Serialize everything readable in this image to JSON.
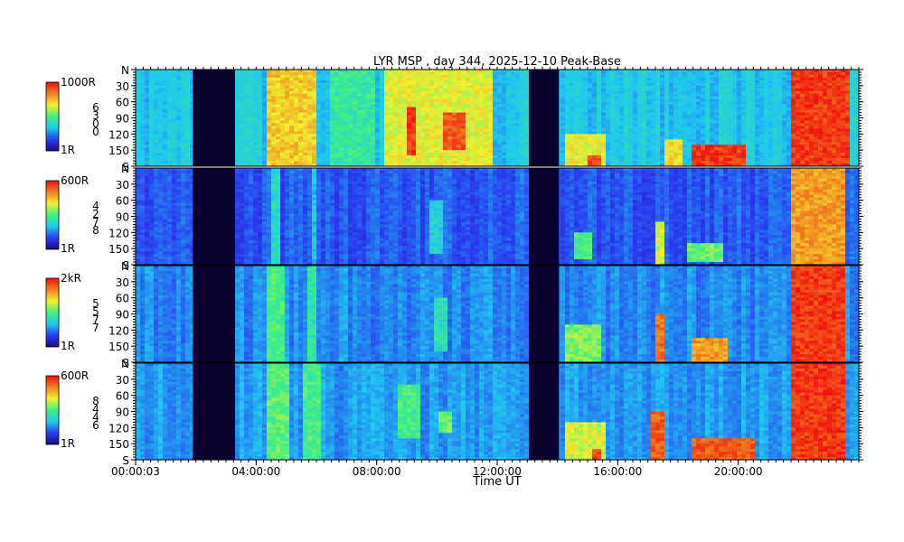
{
  "title": "LYR MSP , day 344, 2025-12-10 Peak-Base",
  "xlabel": "Time UT",
  "chart_data": {
    "type": "heatmap",
    "title": "LYR MSP , day 344, 2025-12-10 Peak-Base",
    "xlabel": "Time UT",
    "x_ticks": [
      "00:00:03",
      "04:00:00",
      "08:00:00",
      "12:00:00",
      "16:00:00",
      "20:00:00"
    ],
    "x_range_hours": [
      0,
      24
    ],
    "y_ticks": [
      "N",
      "30",
      "60",
      "90",
      "120",
      "150",
      "S"
    ],
    "y_range_deg": [
      0,
      180
    ],
    "data_gaps_hours": [
      [
        1.9,
        3.3
      ],
      [
        13.05,
        14.05
      ]
    ],
    "colormap": [
      "#1a0a80",
      "#2a3cf0",
      "#20c8f0",
      "#40f080",
      "#f0f030",
      "#f08020",
      "#f01010"
    ],
    "panels": [
      {
        "colorbar_max": "1000R",
        "colorbar_min": "1R",
        "channel_digits": [
          "6",
          "3",
          "0",
          "0"
        ],
        "base": 0.34,
        "events": [
          {
            "t": [
              4.4,
              6.0
            ],
            "lat": [
              0,
              180
            ],
            "intensity": 0.78
          },
          {
            "t": [
              8.2,
              11.8
            ],
            "lat": [
              0,
              180
            ],
            "intensity": 0.72
          },
          {
            "t": [
              9.0,
              9.3
            ],
            "lat": [
              70,
              160
            ],
            "intensity": 1.0
          },
          {
            "t": [
              10.2,
              10.9
            ],
            "lat": [
              80,
              150
            ],
            "intensity": 0.95
          },
          {
            "t": [
              6.5,
              8.0
            ],
            "lat": [
              0,
              180
            ],
            "intensity": 0.52
          },
          {
            "t": [
              14.2,
              15.6
            ],
            "lat": [
              120,
              180
            ],
            "intensity": 0.72
          },
          {
            "t": [
              15.0,
              15.4
            ],
            "lat": [
              160,
              180
            ],
            "intensity": 0.98
          },
          {
            "t": [
              17.6,
              18.1
            ],
            "lat": [
              130,
              180
            ],
            "intensity": 0.75
          },
          {
            "t": [
              18.4,
              20.3
            ],
            "lat": [
              140,
              180
            ],
            "intensity": 1.0
          },
          {
            "t": [
              21.8,
              23.7
            ],
            "lat": [
              0,
              180
            ],
            "intensity": 1.0
          }
        ]
      },
      {
        "colorbar_max": "600R",
        "colorbar_min": "1R",
        "channel_digits": [
          "4",
          "2",
          "7",
          "8"
        ],
        "base": 0.2,
        "events": [
          {
            "t": [
              4.5,
              4.8
            ],
            "lat": [
              0,
              180
            ],
            "intensity": 0.45
          },
          {
            "t": [
              5.8,
              6.0
            ],
            "lat": [
              0,
              180
            ],
            "intensity": 0.4
          },
          {
            "t": [
              9.8,
              10.2
            ],
            "lat": [
              60,
              160
            ],
            "intensity": 0.42
          },
          {
            "t": [
              14.5,
              15.2
            ],
            "lat": [
              120,
              170
            ],
            "intensity": 0.55
          },
          {
            "t": [
              17.2,
              17.5
            ],
            "lat": [
              100,
              180
            ],
            "intensity": 0.7
          },
          {
            "t": [
              18.3,
              19.5
            ],
            "lat": [
              140,
              175
            ],
            "intensity": 0.6
          },
          {
            "t": [
              21.8,
              23.5
            ],
            "lat": [
              0,
              180
            ],
            "intensity": 0.85
          }
        ]
      },
      {
        "colorbar_max": "2kR",
        "colorbar_min": "1R",
        "channel_digits": [
          "5",
          "5",
          "7",
          "7"
        ],
        "base": 0.26,
        "events": [
          {
            "t": [
              4.4,
              4.9
            ],
            "lat": [
              0,
              180
            ],
            "intensity": 0.55
          },
          {
            "t": [
              5.7,
              6.0
            ],
            "lat": [
              0,
              180
            ],
            "intensity": 0.5
          },
          {
            "t": [
              9.9,
              10.3
            ],
            "lat": [
              60,
              160
            ],
            "intensity": 0.48
          },
          {
            "t": [
              14.3,
              15.5
            ],
            "lat": [
              110,
              180
            ],
            "intensity": 0.62
          },
          {
            "t": [
              17.2,
              17.6
            ],
            "lat": [
              90,
              180
            ],
            "intensity": 0.92
          },
          {
            "t": [
              18.4,
              19.6
            ],
            "lat": [
              135,
              180
            ],
            "intensity": 0.85
          },
          {
            "t": [
              21.8,
              23.6
            ],
            "lat": [
              0,
              180
            ],
            "intensity": 1.0
          }
        ]
      },
      {
        "colorbar_max": "600R",
        "colorbar_min": "1R",
        "channel_digits": [
          "8",
          "4",
          "4",
          "6"
        ],
        "base": 0.28,
        "events": [
          {
            "t": [
              4.3,
              5.1
            ],
            "lat": [
              0,
              180
            ],
            "intensity": 0.58
          },
          {
            "t": [
              5.6,
              6.1
            ],
            "lat": [
              0,
              180
            ],
            "intensity": 0.55
          },
          {
            "t": [
              8.7,
              9.4
            ],
            "lat": [
              40,
              140
            ],
            "intensity": 0.55
          },
          {
            "t": [
              10.0,
              10.5
            ],
            "lat": [
              90,
              130
            ],
            "intensity": 0.6
          },
          {
            "t": [
              14.2,
              15.6
            ],
            "lat": [
              110,
              180
            ],
            "intensity": 0.7
          },
          {
            "t": [
              15.1,
              15.5
            ],
            "lat": [
              160,
              180
            ],
            "intensity": 0.98
          },
          {
            "t": [
              17.1,
              17.6
            ],
            "lat": [
              90,
              180
            ],
            "intensity": 0.95
          },
          {
            "t": [
              18.4,
              20.5
            ],
            "lat": [
              140,
              180
            ],
            "intensity": 0.95
          },
          {
            "t": [
              21.8,
              23.6
            ],
            "lat": [
              0,
              180
            ],
            "intensity": 1.0
          }
        ]
      }
    ]
  }
}
